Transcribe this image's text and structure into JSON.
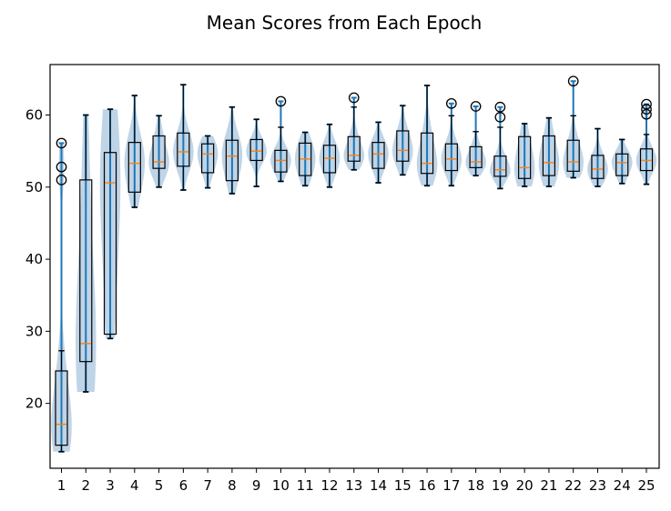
{
  "chart_data": {
    "type": "box-violin",
    "title": "Mean Scores from Each Epoch",
    "xlabel": "",
    "ylabel": "",
    "ylim": [
      11,
      67
    ],
    "yticks": [
      20,
      30,
      40,
      50,
      60
    ],
    "grid": false,
    "colors": {
      "violin": "#aac6df",
      "whisker": "#1f77b4",
      "median": "#ff7f0e",
      "box": "#000000"
    },
    "categories": [
      "1",
      "2",
      "3",
      "4",
      "5",
      "6",
      "7",
      "8",
      "9",
      "10",
      "11",
      "12",
      "13",
      "14",
      "15",
      "16",
      "17",
      "18",
      "19",
      "20",
      "21",
      "22",
      "23",
      "24",
      "25"
    ],
    "boxes": [
      {
        "min": 13.3,
        "q1": 14.2,
        "median": 17.1,
        "q3": 24.5,
        "max": 27.3,
        "outliers": [
          51.0,
          52.8,
          56.1
        ],
        "data_max": 56.1
      },
      {
        "min": 21.6,
        "q1": 25.8,
        "median": 28.3,
        "q3": 51.0,
        "max": 60.0,
        "outliers": [],
        "data_max": 60.0
      },
      {
        "min": 29.0,
        "q1": 29.6,
        "median": 50.6,
        "q3": 54.8,
        "max": 60.8,
        "outliers": [],
        "data_max": 60.8
      },
      {
        "min": 47.2,
        "q1": 49.3,
        "median": 53.3,
        "q3": 56.2,
        "max": 62.7,
        "outliers": [],
        "data_max": 62.7
      },
      {
        "min": 50.0,
        "q1": 52.6,
        "median": 53.5,
        "q3": 57.1,
        "max": 59.9,
        "outliers": [],
        "data_max": 59.9
      },
      {
        "min": 49.6,
        "q1": 52.9,
        "median": 54.9,
        "q3": 57.5,
        "max": 64.2,
        "outliers": [],
        "data_max": 64.2
      },
      {
        "min": 49.9,
        "q1": 52.0,
        "median": 54.6,
        "q3": 56.0,
        "max": 57.1,
        "outliers": [],
        "data_max": 57.1
      },
      {
        "min": 49.1,
        "q1": 50.9,
        "median": 54.3,
        "q3": 56.5,
        "max": 61.1,
        "outliers": [],
        "data_max": 61.1
      },
      {
        "min": 50.1,
        "q1": 53.7,
        "median": 55.0,
        "q3": 56.6,
        "max": 59.4,
        "outliers": [],
        "data_max": 59.4
      },
      {
        "min": 50.8,
        "q1": 52.1,
        "median": 53.7,
        "q3": 55.1,
        "max": 58.3,
        "outliers": [
          61.9
        ],
        "data_max": 61.9
      },
      {
        "min": 50.2,
        "q1": 51.6,
        "median": 53.9,
        "q3": 56.1,
        "max": 57.6,
        "outliers": [],
        "data_max": 57.6
      },
      {
        "min": 50.0,
        "q1": 52.0,
        "median": 54.0,
        "q3": 55.8,
        "max": 58.7,
        "outliers": [],
        "data_max": 58.7
      },
      {
        "min": 52.4,
        "q1": 53.6,
        "median": 54.4,
        "q3": 57.0,
        "max": 61.1,
        "outliers": [
          62.4
        ],
        "data_max": 62.4
      },
      {
        "min": 50.6,
        "q1": 52.6,
        "median": 54.6,
        "q3": 56.2,
        "max": 59.0,
        "outliers": [],
        "data_max": 59.0
      },
      {
        "min": 51.7,
        "q1": 53.6,
        "median": 55.1,
        "q3": 57.8,
        "max": 61.3,
        "outliers": [],
        "data_max": 61.3
      },
      {
        "min": 50.2,
        "q1": 51.9,
        "median": 53.3,
        "q3": 57.5,
        "max": 64.1,
        "outliers": [],
        "data_max": 64.1
      },
      {
        "min": 50.2,
        "q1": 52.3,
        "median": 53.9,
        "q3": 56.0,
        "max": 59.9,
        "outliers": [
          61.6
        ],
        "data_max": 61.6
      },
      {
        "min": 51.6,
        "q1": 52.7,
        "median": 53.5,
        "q3": 55.6,
        "max": 57.7,
        "outliers": [
          61.2
        ],
        "data_max": 61.2
      },
      {
        "min": 49.8,
        "q1": 51.5,
        "median": 52.4,
        "q3": 54.3,
        "max": 58.3,
        "outliers": [
          59.7,
          61.1
        ],
        "data_max": 61.1
      },
      {
        "min": 50.1,
        "q1": 51.2,
        "median": 52.7,
        "q3": 57.0,
        "max": 58.8,
        "outliers": [],
        "data_max": 58.8
      },
      {
        "min": 50.1,
        "q1": 51.6,
        "median": 53.4,
        "q3": 57.1,
        "max": 59.6,
        "outliers": [],
        "data_max": 59.6
      },
      {
        "min": 51.3,
        "q1": 52.2,
        "median": 53.5,
        "q3": 56.5,
        "max": 59.9,
        "outliers": [
          64.7
        ],
        "data_max": 64.7
      },
      {
        "min": 50.1,
        "q1": 51.2,
        "median": 52.5,
        "q3": 54.4,
        "max": 58.1,
        "outliers": [],
        "data_max": 58.1
      },
      {
        "min": 50.5,
        "q1": 51.6,
        "median": 53.4,
        "q3": 54.6,
        "max": 56.6,
        "outliers": [],
        "data_max": 56.6
      },
      {
        "min": 50.4,
        "q1": 52.3,
        "median": 53.7,
        "q3": 55.3,
        "max": 57.3,
        "outliers": [
          60.1,
          60.8,
          61.5
        ],
        "data_max": 61.5
      }
    ]
  }
}
